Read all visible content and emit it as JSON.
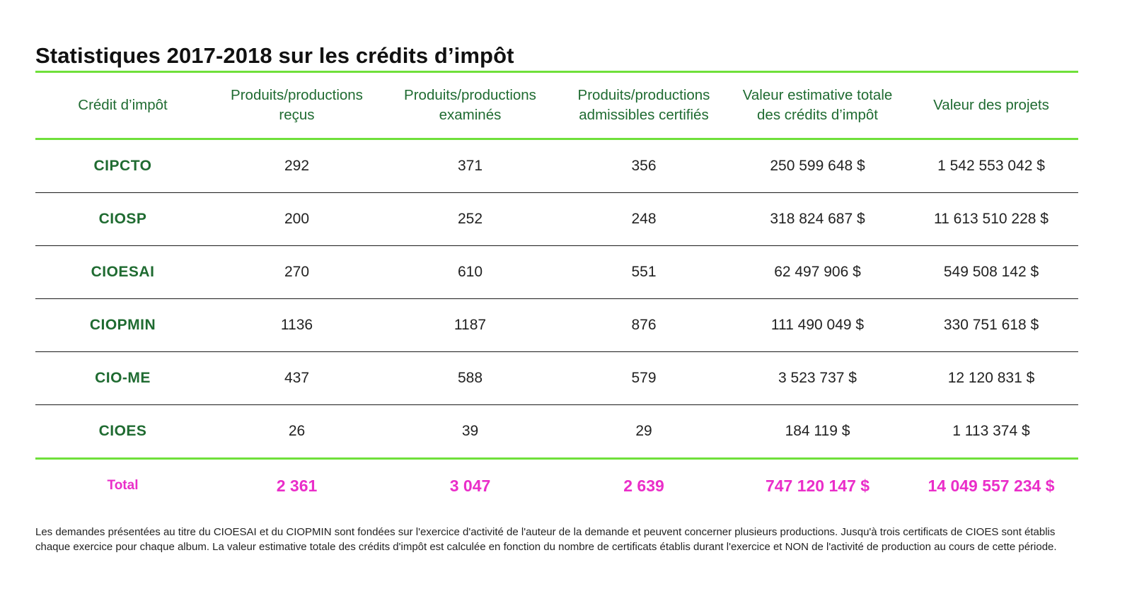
{
  "title": "Statistiques 2017-2018 sur les crédits d’impôt",
  "colors": {
    "accent_green_line": "#6fe03b",
    "header_text_green": "#1f6b31",
    "total_magenta": "#ea2ec9"
  },
  "table": {
    "headers": [
      "Crédit d’impôt",
      "Produits/productions reçus",
      "Produits/productions examinés",
      "Produits/productions admissibles certifiés",
      "Valeur estimative totale des crédits d’impôt",
      "Valeur des projets"
    ],
    "rows": [
      {
        "credit": "CIPCTO",
        "recus": "292",
        "examines": "371",
        "certifies": "356",
        "valeur_credits": "250 599 648 $",
        "valeur_projets": "1 542 553 042 $"
      },
      {
        "credit": "CIOSP",
        "recus": "200",
        "examines": "252",
        "certifies": "248",
        "valeur_credits": "318 824 687 $",
        "valeur_projets": "11 613 510 228 $"
      },
      {
        "credit": "CIOESAI",
        "recus": "270",
        "examines": "610",
        "certifies": "551",
        "valeur_credits": "62 497 906 $",
        "valeur_projets": "549 508 142 $"
      },
      {
        "credit": "CIOPMIN",
        "recus": "1136",
        "examines": "1187",
        "certifies": "876",
        "valeur_credits": "111 490 049 $",
        "valeur_projets": "330 751 618 $"
      },
      {
        "credit": "CIO-ME",
        "recus": "437",
        "examines": "588",
        "certifies": "579",
        "valeur_credits": "3 523 737 $",
        "valeur_projets": "12 120 831 $"
      },
      {
        "credit": "CIOES",
        "recus": "26",
        "examines": "39",
        "certifies": "29",
        "valeur_credits": "184 119 $",
        "valeur_projets": "1 113 374 $"
      }
    ],
    "total": {
      "label": "Total",
      "recus": "2 361",
      "examines": "3 047",
      "certifies": "2 639",
      "valeur_credits": "747 120 147 $",
      "valeur_projets": "14 049 557 234 $"
    }
  },
  "footnote": "Les demandes présentées au titre du CIOESAI et du CIOPMIN sont fondées sur l'exercice d'activité de l'auteur de la demande et peuvent concerner plusieurs productions. Jusqu'à trois certificats de CIOES sont établis chaque exercice pour chaque album. La valeur estimative totale des crédits d'impôt est calculée en fonction du nombre de certificats établis durant l'exercice et NON de l'activité de production au cours de cette période."
}
